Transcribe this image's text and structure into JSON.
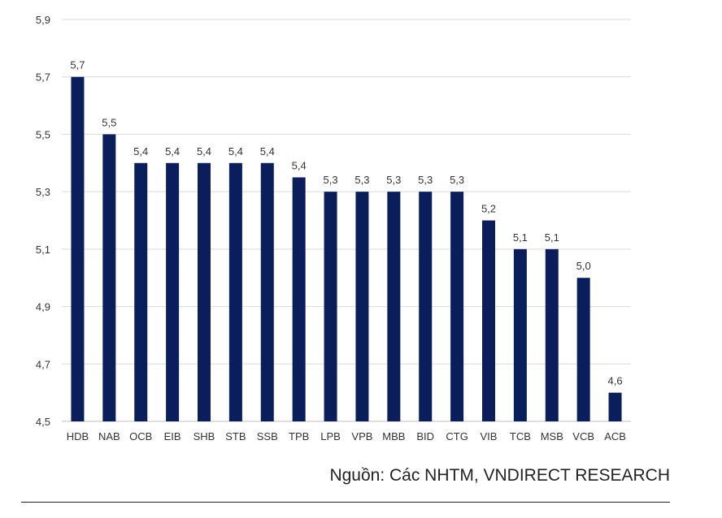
{
  "chart_data": {
    "type": "bar",
    "categories": [
      "HDB",
      "NAB",
      "OCB",
      "EIB",
      "SHB",
      "STB",
      "SSB",
      "TPB",
      "LPB",
      "VPB",
      "MBB",
      "BID",
      "CTG",
      "VIB",
      "TCB",
      "MSB",
      "VCB",
      "ACB"
    ],
    "values": [
      5.7,
      5.5,
      5.4,
      5.4,
      5.4,
      5.4,
      5.4,
      5.35,
      5.3,
      5.3,
      5.3,
      5.3,
      5.3,
      5.2,
      5.1,
      5.1,
      5.0,
      4.6
    ],
    "data_labels": [
      "5,7",
      "5,5",
      "5,4",
      "5,4",
      "5,4",
      "5,4",
      "5,4",
      "5,4",
      "5,3",
      "5,3",
      "5,3",
      "5,3",
      "5,3",
      "5,2",
      "5,1",
      "5,1",
      "5,0",
      "4,6"
    ],
    "y_ticks": [
      "4,5",
      "4,7",
      "4,9",
      "5,1",
      "5,3",
      "5,5",
      "5,7",
      "5,9"
    ],
    "ylim": [
      4.5,
      5.9
    ],
    "grid": true,
    "bar_color": "#0a1e5c",
    "grid_color": "#d9d9d9"
  },
  "source_text": "Nguồn: Các NHTM, VNDIRECT RESEARCH"
}
